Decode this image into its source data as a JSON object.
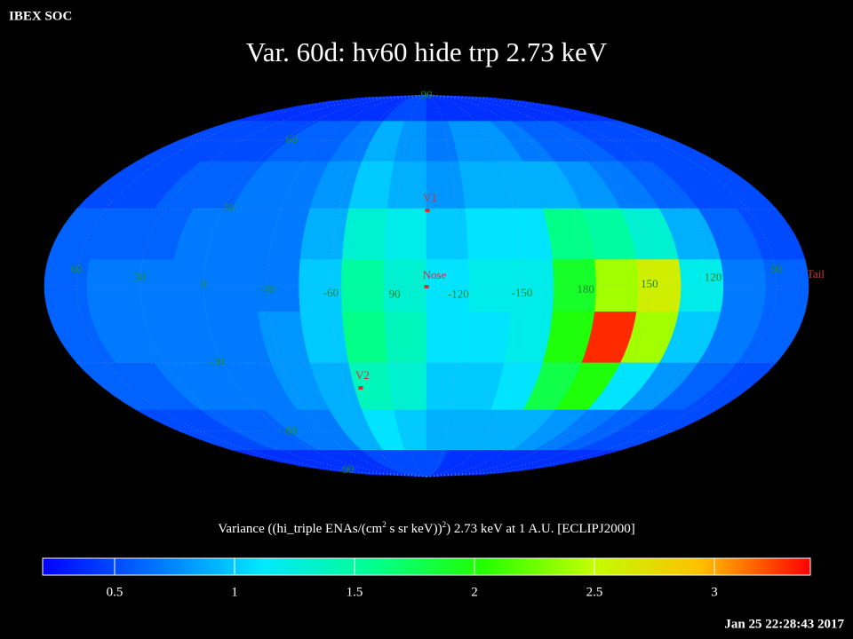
{
  "header": "IBEX SOC",
  "title": "Var. 60d: hv60 hide trp 2.73 keV",
  "footer": "Jan 25 22:28:43 2017",
  "map": {
    "lat_labels": [
      90,
      60,
      30,
      -30,
      -60,
      -90
    ],
    "lon_labels": [
      60,
      30,
      0,
      -30,
      -60,
      90,
      -120,
      -150,
      180,
      150,
      120,
      90
    ],
    "markers": [
      "V1",
      "Nose",
      "V2",
      "Tail"
    ],
    "grid": {
      "values": [
        [
          0.4,
          0.4,
          0.4,
          0.4,
          0.4,
          0.4,
          0.4,
          0.5,
          0.5,
          0.4,
          0.4,
          0.4,
          0.4,
          0.4,
          0.4,
          0.4,
          0.4,
          0.4
        ],
        [
          0.5,
          0.5,
          0.5,
          0.5,
          0.6,
          0.6,
          0.7,
          0.9,
          0.8,
          0.7,
          0.8,
          0.8,
          0.7,
          0.6,
          0.6,
          0.5,
          0.5,
          0.5
        ],
        [
          0.5,
          0.5,
          0.6,
          0.6,
          0.7,
          0.7,
          0.8,
          1.0,
          0.9,
          0.8,
          0.9,
          0.9,
          0.9,
          0.8,
          0.7,
          0.6,
          0.5,
          0.5
        ],
        [
          0.6,
          0.6,
          0.6,
          0.7,
          0.7,
          0.7,
          0.9,
          1.3,
          1.2,
          1.0,
          1.1,
          1.1,
          1.6,
          1.5,
          1.3,
          0.9,
          0.6,
          0.5
        ],
        [
          0.6,
          0.7,
          0.7,
          0.7,
          0.7,
          0.7,
          1.0,
          1.5,
          1.3,
          1.1,
          1.2,
          1.2,
          1.9,
          2.4,
          2.6,
          1.2,
          0.7,
          0.6
        ],
        [
          0.6,
          0.7,
          0.7,
          0.7,
          0.7,
          0.8,
          1.0,
          1.6,
          1.4,
          1.1,
          1.1,
          1.2,
          2.0,
          3.3,
          2.4,
          1.0,
          0.7,
          0.6
        ],
        [
          0.6,
          0.6,
          0.7,
          0.7,
          0.7,
          0.8,
          0.9,
          1.4,
          1.3,
          1.0,
          1.0,
          1.1,
          1.8,
          2.0,
          1.1,
          0.8,
          0.6,
          0.5
        ],
        [
          0.5,
          0.5,
          0.6,
          0.6,
          0.7,
          0.7,
          0.9,
          1.1,
          1.0,
          0.9,
          0.9,
          0.9,
          0.9,
          0.8,
          0.7,
          0.6,
          0.5,
          0.5
        ],
        [
          0.4,
          0.4,
          0.4,
          0.4,
          0.4,
          0.4,
          0.5,
          0.5,
          0.5,
          0.5,
          0.4,
          0.4,
          0.4,
          0.4,
          0.4,
          0.4,
          0.4,
          0.4
        ]
      ]
    }
  },
  "colorbar": {
    "label": [
      "Variance ((hi_triple ENAs/(cm",
      "2",
      " s sr keV))",
      "2",
      ") 2.73 keV at 1 A.U. [ECLIPJ2000]"
    ],
    "clim": [
      0.2,
      3.4
    ],
    "ticks": [
      0.5,
      1,
      1.5,
      2,
      2.5,
      3
    ],
    "colormap": [
      "#0000ff",
      "#0070ff",
      "#00e8ff",
      "#00ff90",
      "#20ff00",
      "#c0ff00",
      "#ffc000",
      "#ff0000"
    ]
  }
}
